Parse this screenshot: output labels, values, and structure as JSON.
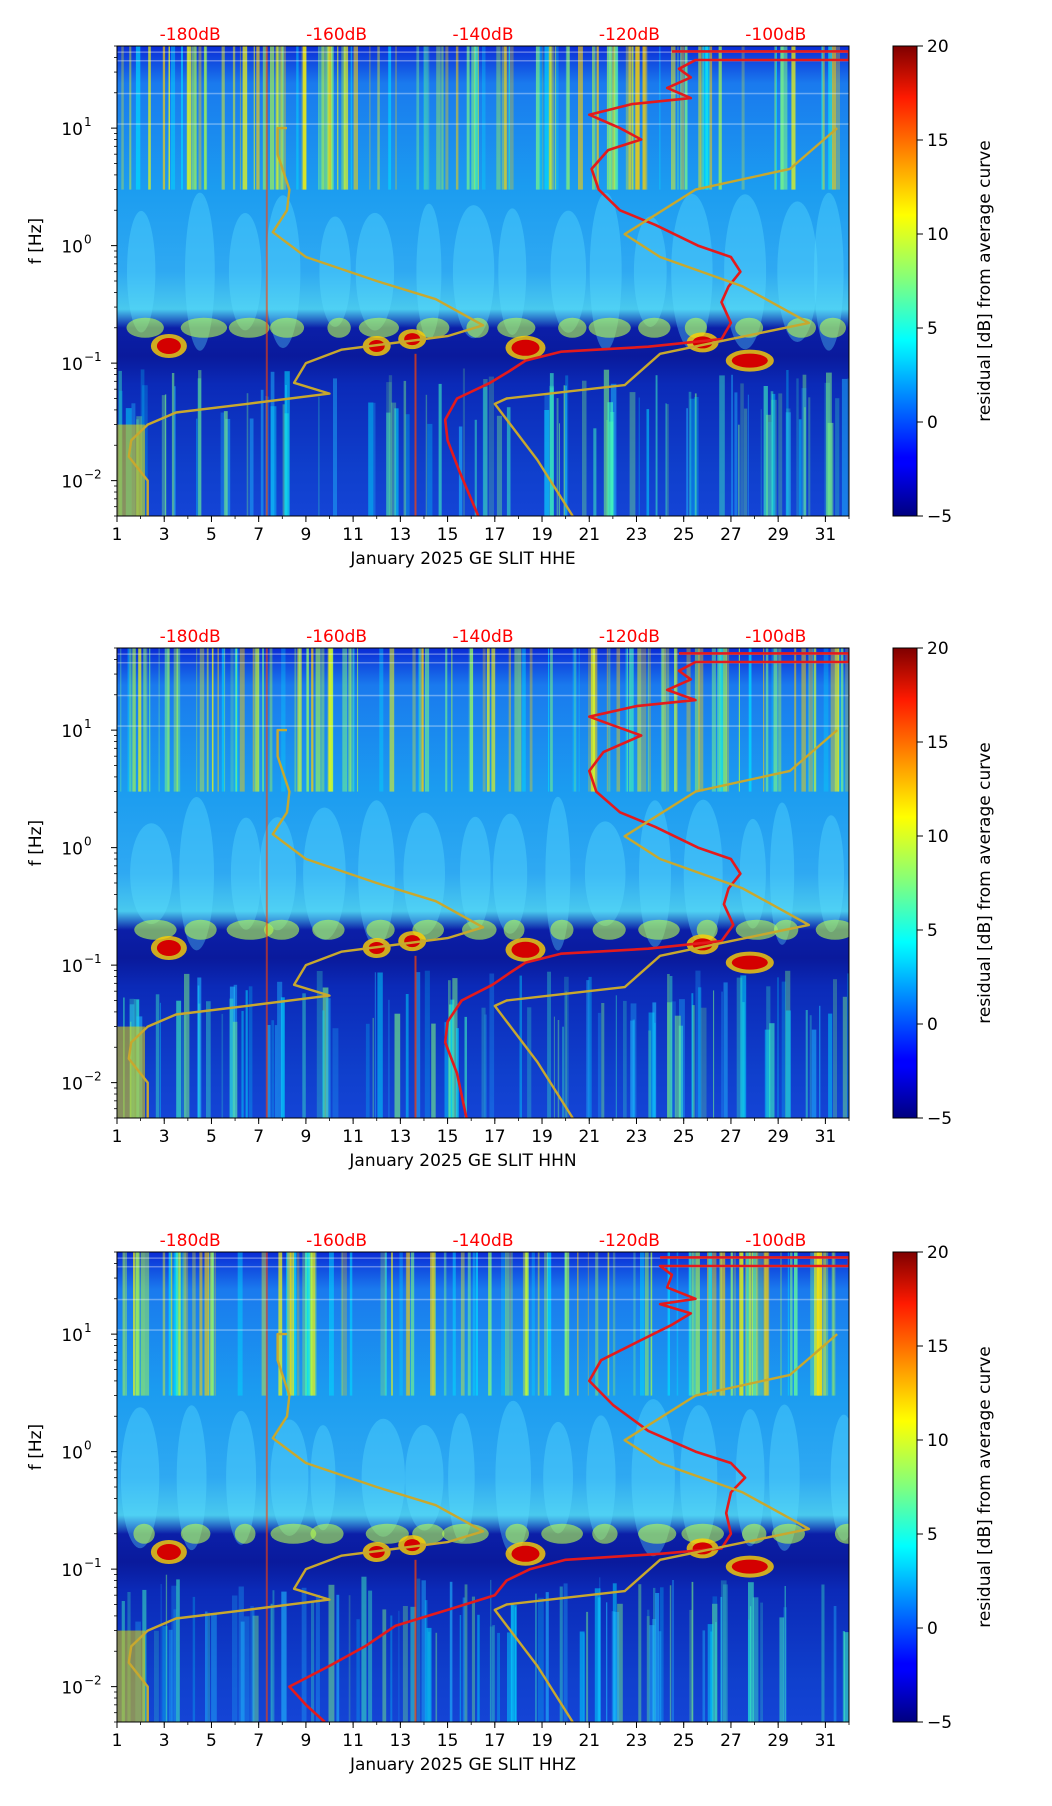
{
  "chart_data": [
    {
      "type": "heatmap",
      "xlabel": "January 2025 GE SLIT  HHE",
      "ylabel": "f [Hz]",
      "x_ticks": [
        "1",
        "3",
        "5",
        "7",
        "9",
        "11",
        "13",
        "15",
        "17",
        "19",
        "21",
        "23",
        "25",
        "27",
        "29",
        "31"
      ],
      "xlim": [
        1,
        32
      ],
      "y_scale": "log",
      "ylim": [
        0.005,
        50
      ],
      "y_ticks": [
        {
          "base": "10",
          "exp": "−2",
          "value": 0.01
        },
        {
          "base": "10",
          "exp": "−1",
          "value": 0.1
        },
        {
          "base": "10",
          "exp": "0",
          "value": 1
        },
        {
          "base": "10",
          "exp": "1",
          "value": 10
        }
      ],
      "top_axis": {
        "labels": [
          "-180dB",
          "-160dB",
          "-140dB",
          "-120dB",
          "-100dB"
        ],
        "values": [
          -180,
          -160,
          -140,
          -120,
          -100
        ],
        "color": "#ff0000"
      },
      "colorbar": {
        "label": "residual [dB] from average curve",
        "range": [
          -5,
          20
        ],
        "ticks": [
          "−5",
          "0",
          "5",
          "10",
          "15",
          "20"
        ]
      },
      "series": [
        {
          "color": "#e41a1c",
          "points": [
            [
              16.3,
              0.005
            ],
            [
              15.5,
              0.012
            ],
            [
              15.0,
              0.022
            ],
            [
              14.9,
              0.033
            ],
            [
              15.4,
              0.05
            ],
            [
              16.8,
              0.068
            ],
            [
              17.6,
              0.085
            ],
            [
              18.3,
              0.105
            ],
            [
              19.8,
              0.125
            ],
            [
              23.5,
              0.138
            ],
            [
              26.6,
              0.16
            ],
            [
              27.0,
              0.22
            ],
            [
              26.6,
              0.33
            ],
            [
              26.9,
              0.45
            ],
            [
              27.4,
              0.6
            ],
            [
              27.0,
              0.8
            ],
            [
              25.6,
              1.0
            ],
            [
              23.8,
              1.5
            ],
            [
              22.3,
              2.0
            ],
            [
              21.4,
              3.0
            ],
            [
              21.1,
              4.5
            ],
            [
              21.8,
              6.5
            ],
            [
              23.2,
              8.0
            ],
            [
              22.3,
              10.0
            ],
            [
              21.0,
              13.0
            ],
            [
              22.8,
              16.0
            ],
            [
              25.3,
              18.0
            ],
            [
              24.3,
              22.0
            ],
            [
              25.3,
              27.0
            ],
            [
              24.8,
              32.0
            ],
            [
              25.5,
              38.0
            ],
            [
              32.0,
              38.0
            ],
            [
              32.0,
              45.0
            ],
            [
              24.5,
              45.0
            ]
          ]
        },
        {
          "color": "#c8a82e",
          "points": [
            [
              2.3,
              0.005
            ],
            [
              2.3,
              0.01
            ],
            [
              1.5,
              0.016
            ],
            [
              1.6,
              0.022
            ],
            [
              2.3,
              0.03
            ],
            [
              3.5,
              0.038
            ],
            [
              6.5,
              0.045
            ],
            [
              10.0,
              0.055
            ],
            [
              8.5,
              0.068
            ],
            [
              9.0,
              0.1
            ],
            [
              10.5,
              0.13
            ],
            [
              15.0,
              0.17
            ],
            [
              16.5,
              0.21
            ],
            [
              14.5,
              0.35
            ],
            [
              12.0,
              0.5
            ],
            [
              9.0,
              0.8
            ],
            [
              7.6,
              1.3
            ],
            [
              8.2,
              2.0
            ],
            [
              8.3,
              3.0
            ],
            [
              7.8,
              6.0
            ],
            [
              7.8,
              10.0
            ],
            [
              8.2,
              10.0
            ]
          ]
        },
        {
          "color": "#c8a82e",
          "points": [
            [
              20.3,
              0.005
            ],
            [
              18.8,
              0.015
            ],
            [
              17.0,
              0.045
            ],
            [
              17.5,
              0.05
            ],
            [
              22.5,
              0.065
            ],
            [
              24.0,
              0.12
            ],
            [
              27.0,
              0.16
            ],
            [
              30.3,
              0.22
            ],
            [
              27.5,
              0.45
            ],
            [
              24.0,
              0.8
            ],
            [
              22.5,
              1.25
            ],
            [
              25.5,
              3.0
            ],
            [
              29.5,
              4.5
            ],
            [
              31.5,
              10.0
            ]
          ]
        }
      ]
    },
    {
      "type": "heatmap",
      "xlabel": "January 2025 GE SLIT  HHN",
      "ylabel": "f [Hz]",
      "x_ticks": [
        "1",
        "3",
        "5",
        "7",
        "9",
        "11",
        "13",
        "15",
        "17",
        "19",
        "21",
        "23",
        "25",
        "27",
        "29",
        "31"
      ],
      "xlim": [
        1,
        32
      ],
      "y_scale": "log",
      "ylim": [
        0.005,
        50
      ],
      "y_ticks": [
        {
          "base": "10",
          "exp": "−2",
          "value": 0.01
        },
        {
          "base": "10",
          "exp": "−1",
          "value": 0.1
        },
        {
          "base": "10",
          "exp": "0",
          "value": 1
        },
        {
          "base": "10",
          "exp": "1",
          "value": 10
        }
      ],
      "top_axis": {
        "labels": [
          "-180dB",
          "-160dB",
          "-140dB",
          "-120dB",
          "-100dB"
        ],
        "values": [
          -180,
          -160,
          -140,
          -120,
          -100
        ],
        "color": "#ff0000"
      },
      "colorbar": {
        "label": "residual [dB] from average curve",
        "range": [
          -5,
          20
        ],
        "ticks": [
          "−5",
          "0",
          "5",
          "10",
          "15",
          "20"
        ]
      },
      "series": [
        {
          "color": "#e41a1c",
          "points": [
            [
              15.8,
              0.005
            ],
            [
              15.4,
              0.012
            ],
            [
              14.9,
              0.022
            ],
            [
              15.0,
              0.033
            ],
            [
              15.6,
              0.05
            ],
            [
              16.9,
              0.068
            ],
            [
              17.6,
              0.085
            ],
            [
              18.3,
              0.105
            ],
            [
              19.8,
              0.125
            ],
            [
              23.5,
              0.138
            ],
            [
              26.6,
              0.16
            ],
            [
              27.1,
              0.22
            ],
            [
              26.7,
              0.33
            ],
            [
              26.9,
              0.45
            ],
            [
              27.4,
              0.6
            ],
            [
              27.0,
              0.8
            ],
            [
              25.6,
              1.0
            ],
            [
              23.8,
              1.5
            ],
            [
              22.3,
              2.0
            ],
            [
              21.3,
              3.0
            ],
            [
              21.0,
              4.5
            ],
            [
              21.6,
              6.5
            ],
            [
              23.2,
              9.0
            ],
            [
              22.0,
              11.0
            ],
            [
              21.0,
              13.0
            ],
            [
              23.0,
              16.0
            ],
            [
              25.5,
              18.0
            ],
            [
              24.3,
              22.0
            ],
            [
              25.3,
              27.0
            ],
            [
              24.8,
              32.0
            ],
            [
              25.5,
              38.0
            ],
            [
              32.0,
              38.0
            ],
            [
              32.0,
              45.0
            ],
            [
              24.8,
              45.0
            ]
          ]
        },
        {
          "color": "#c8a82e",
          "points": [
            [
              2.3,
              0.005
            ],
            [
              2.3,
              0.01
            ],
            [
              1.5,
              0.016
            ],
            [
              1.6,
              0.022
            ],
            [
              2.3,
              0.03
            ],
            [
              3.5,
              0.038
            ],
            [
              6.5,
              0.045
            ],
            [
              10.0,
              0.055
            ],
            [
              8.5,
              0.068
            ],
            [
              9.0,
              0.1
            ],
            [
              10.5,
              0.13
            ],
            [
              15.0,
              0.17
            ],
            [
              16.5,
              0.21
            ],
            [
              14.5,
              0.35
            ],
            [
              12.0,
              0.5
            ],
            [
              9.0,
              0.8
            ],
            [
              7.6,
              1.3
            ],
            [
              8.2,
              2.0
            ],
            [
              8.3,
              3.0
            ],
            [
              7.8,
              6.0
            ],
            [
              7.8,
              10.0
            ],
            [
              8.2,
              10.0
            ]
          ]
        },
        {
          "color": "#c8a82e",
          "points": [
            [
              20.3,
              0.005
            ],
            [
              18.8,
              0.015
            ],
            [
              17.0,
              0.045
            ],
            [
              17.5,
              0.05
            ],
            [
              22.5,
              0.065
            ],
            [
              24.0,
              0.12
            ],
            [
              27.0,
              0.16
            ],
            [
              30.3,
              0.22
            ],
            [
              27.5,
              0.45
            ],
            [
              24.0,
              0.8
            ],
            [
              22.5,
              1.25
            ],
            [
              25.5,
              3.0
            ],
            [
              29.5,
              4.5
            ],
            [
              31.5,
              10.0
            ]
          ]
        }
      ]
    },
    {
      "type": "heatmap",
      "xlabel": "January 2025 GE SLIT  HHZ",
      "ylabel": "f [Hz]",
      "x_ticks": [
        "1",
        "3",
        "5",
        "7",
        "9",
        "11",
        "13",
        "15",
        "17",
        "19",
        "21",
        "23",
        "25",
        "27",
        "29",
        "31"
      ],
      "xlim": [
        1,
        32
      ],
      "y_scale": "log",
      "ylim": [
        0.005,
        50
      ],
      "y_ticks": [
        {
          "base": "10",
          "exp": "−2",
          "value": 0.01
        },
        {
          "base": "10",
          "exp": "−1",
          "value": 0.1
        },
        {
          "base": "10",
          "exp": "0",
          "value": 1
        },
        {
          "base": "10",
          "exp": "1",
          "value": 10
        }
      ],
      "top_axis": {
        "labels": [
          "-180dB",
          "-160dB",
          "-140dB",
          "-120dB",
          "-100dB"
        ],
        "values": [
          -180,
          -160,
          -140,
          -120,
          -100
        ],
        "color": "#ff0000"
      },
      "colorbar": {
        "label": "residual [dB] from average curve",
        "range": [
          -5,
          20
        ],
        "ticks": [
          "−5",
          "0",
          "5",
          "10",
          "15",
          "20"
        ]
      },
      "series": [
        {
          "color": "#e41a1c",
          "points": [
            [
              9.8,
              0.005
            ],
            [
              9.0,
              0.007
            ],
            [
              8.3,
              0.01
            ],
            [
              10.0,
              0.015
            ],
            [
              11.5,
              0.022
            ],
            [
              12.8,
              0.033
            ],
            [
              15.0,
              0.045
            ],
            [
              17.0,
              0.06
            ],
            [
              17.5,
              0.08
            ],
            [
              18.5,
              0.1
            ],
            [
              20.0,
              0.12
            ],
            [
              24.0,
              0.135
            ],
            [
              26.6,
              0.15
            ],
            [
              27.0,
              0.2
            ],
            [
              26.8,
              0.3
            ],
            [
              27.0,
              0.45
            ],
            [
              27.6,
              0.6
            ],
            [
              27.0,
              0.8
            ],
            [
              25.5,
              1.0
            ],
            [
              23.5,
              1.5
            ],
            [
              22.0,
              2.5
            ],
            [
              21.0,
              4.0
            ],
            [
              21.5,
              6.0
            ],
            [
              23.0,
              8.5
            ],
            [
              24.5,
              12.0
            ],
            [
              25.3,
              15.0
            ],
            [
              24.0,
              18.0
            ],
            [
              25.5,
              20.0
            ],
            [
              24.3,
              25.0
            ],
            [
              24.5,
              32.0
            ],
            [
              24.0,
              38.0
            ],
            [
              32.0,
              38.0
            ],
            [
              32.0,
              45.0
            ],
            [
              24.0,
              45.0
            ]
          ]
        },
        {
          "color": "#c8a82e",
          "points": [
            [
              2.3,
              0.005
            ],
            [
              2.3,
              0.01
            ],
            [
              1.5,
              0.016
            ],
            [
              1.6,
              0.022
            ],
            [
              2.3,
              0.03
            ],
            [
              3.5,
              0.038
            ],
            [
              6.5,
              0.045
            ],
            [
              10.0,
              0.055
            ],
            [
              8.5,
              0.068
            ],
            [
              9.0,
              0.1
            ],
            [
              10.5,
              0.13
            ],
            [
              15.0,
              0.17
            ],
            [
              16.5,
              0.21
            ],
            [
              14.5,
              0.35
            ],
            [
              12.0,
              0.5
            ],
            [
              9.0,
              0.8
            ],
            [
              7.6,
              1.3
            ],
            [
              8.2,
              2.0
            ],
            [
              8.3,
              3.0
            ],
            [
              7.8,
              6.0
            ],
            [
              7.8,
              10.0
            ],
            [
              8.2,
              10.0
            ]
          ]
        },
        {
          "color": "#c8a82e",
          "points": [
            [
              20.3,
              0.005
            ],
            [
              18.8,
              0.015
            ],
            [
              17.0,
              0.045
            ],
            [
              17.5,
              0.05
            ],
            [
              22.5,
              0.065
            ],
            [
              24.0,
              0.12
            ],
            [
              27.0,
              0.16
            ],
            [
              30.3,
              0.22
            ],
            [
              27.5,
              0.45
            ],
            [
              24.0,
              0.8
            ],
            [
              22.5,
              1.25
            ],
            [
              25.5,
              3.0
            ],
            [
              29.5,
              4.5
            ],
            [
              31.5,
              10.0
            ]
          ]
        }
      ]
    }
  ]
}
